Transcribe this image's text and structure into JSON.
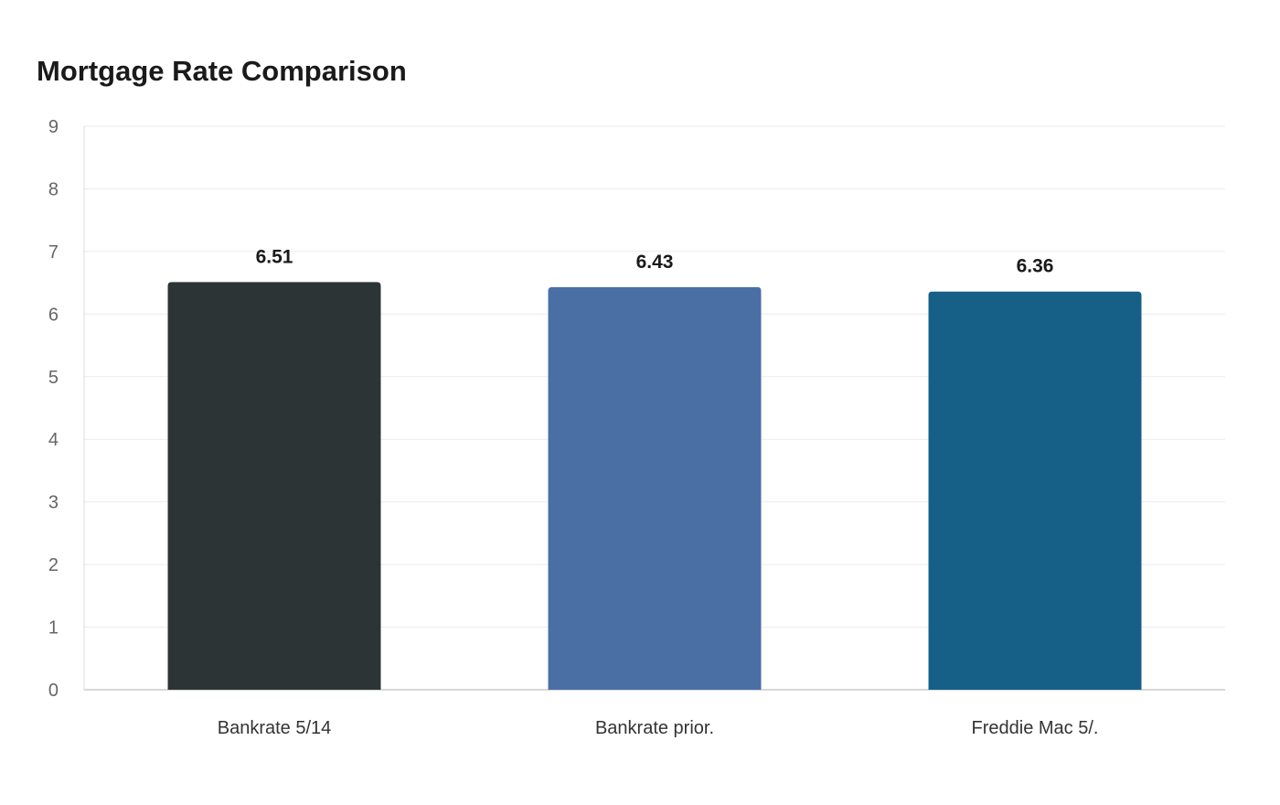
{
  "chart_data": {
    "type": "bar",
    "title": "Mortgage Rate Comparison",
    "xlabel": "",
    "ylabel": "",
    "categories": [
      "Bankrate 5/14",
      "Bankrate prior.",
      "Freddie Mac 5/."
    ],
    "values": [
      6.51,
      6.43,
      6.36
    ],
    "value_labels": [
      "6.51",
      "6.43",
      "6.36"
    ],
    "ylim": [
      0,
      9
    ],
    "yticks": [
      0,
      1,
      2,
      3,
      4,
      5,
      6,
      7,
      8,
      9
    ],
    "grid": true,
    "legend": "none",
    "colors": [
      "#2d3436",
      "#4a6fa5",
      "#166088"
    ]
  }
}
